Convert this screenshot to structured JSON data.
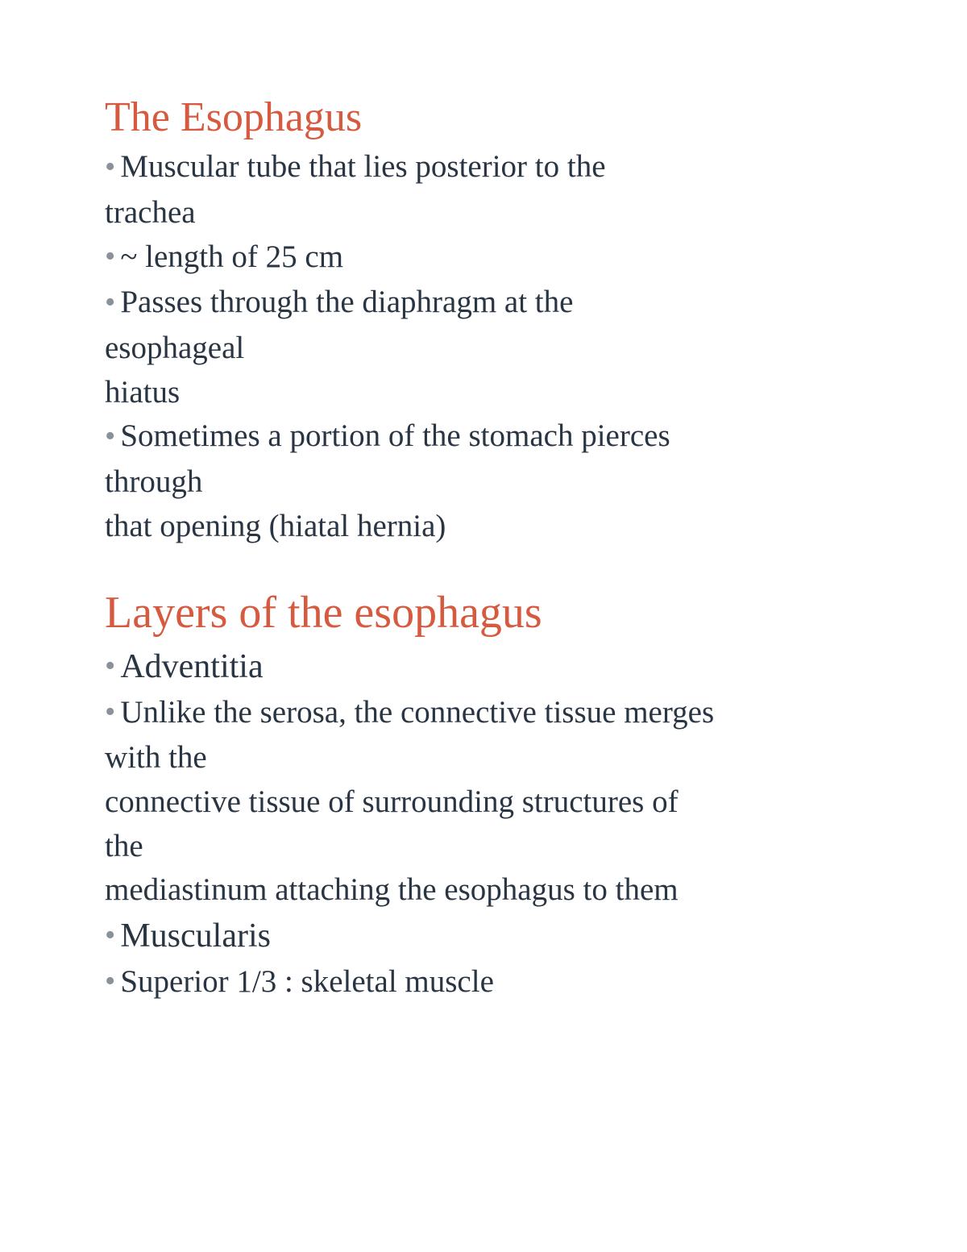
{
  "document": {
    "background_color": "#ffffff",
    "heading_color": "#d55a3f",
    "body_text_color": "#2a3543",
    "bullet_color": "#8a9199",
    "font_family": "Georgia, Times New Roman, serif",
    "heading_fontsize": 52,
    "heading_large_fontsize": 56,
    "body_fontsize": 39,
    "body_large_fontsize": 42,
    "sections": [
      {
        "heading": "The Esophagus",
        "lines": [
          {
            "bullet": true,
            "text": "Muscular tube that lies posterior to the"
          },
          {
            "bullet": false,
            "text": "trachea"
          },
          {
            "bullet": true,
            "text": "~ length of 25 cm"
          },
          {
            "bullet": true,
            "text": "Passes through the diaphragm at the"
          },
          {
            "bullet": false,
            "text": "esophageal"
          },
          {
            "bullet": false,
            "text": "hiatus"
          },
          {
            "bullet": true,
            "text": "Sometimes a portion of the stomach pierces"
          },
          {
            "bullet": false,
            "text": "through"
          },
          {
            "bullet": false,
            "text": "that opening (hiatal hernia)"
          }
        ]
      },
      {
        "heading": "Layers of the esophagus",
        "lines": [
          {
            "bullet": true,
            "large": true,
            "text": "Adventitia"
          },
          {
            "bullet": true,
            "text": "Unlike the serosa, the connective tissue merges"
          },
          {
            "bullet": false,
            "text": "with the"
          },
          {
            "bullet": false,
            "text": "connective tissue of surrounding structures of"
          },
          {
            "bullet": false,
            "text": "the"
          },
          {
            "bullet": false,
            "text": "mediastinum attaching the esophagus to them"
          },
          {
            "bullet": true,
            "large": true,
            "text": "Muscularis"
          },
          {
            "bullet": true,
            "text": "Superior 1/3 : skeletal muscle"
          }
        ]
      }
    ]
  }
}
